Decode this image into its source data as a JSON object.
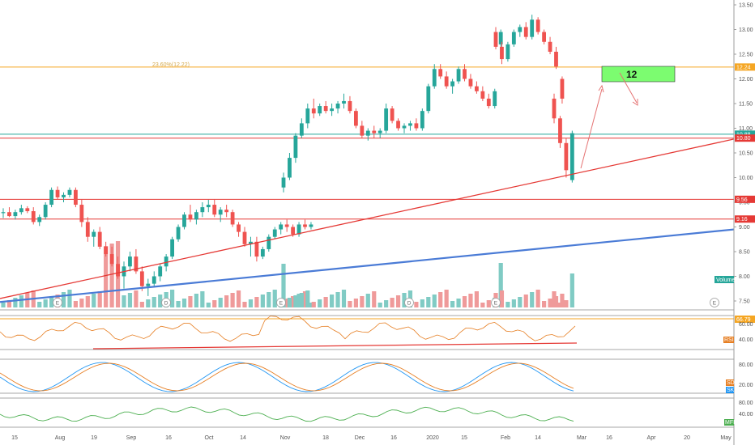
{
  "chart_data": {
    "type": "candlestick",
    "price_axis": {
      "ticks": [
        "13.50",
        "13.00",
        "12.50",
        "12.00",
        "11.50",
        "11.00",
        "10.50",
        "10.00",
        "9.50",
        "9.00",
        "8.50",
        "8.00",
        "7.50"
      ],
      "tick_values": [
        13.5,
        13.0,
        12.5,
        12.0,
        11.5,
        11.0,
        10.5,
        10.0,
        9.5,
        9.0,
        8.5,
        8.0,
        7.5
      ]
    },
    "time_axis": [
      "15",
      "Aug",
      "19",
      "Sep",
      "16",
      "Oct",
      "14",
      "Nov",
      "18",
      "Dec",
      "16",
      "2020",
      "15",
      "Feb",
      "14",
      "Mar",
      "16",
      "Apr",
      "20",
      "May"
    ],
    "horizontal_levels": [
      {
        "value": 12.24,
        "label": "12.24",
        "color": "#f5a623"
      },
      {
        "value": 10.88,
        "label": "10.88",
        "color": "#26a69a"
      },
      {
        "value": 10.8,
        "label": "10.80",
        "color": "#e53935"
      },
      {
        "value": 9.56,
        "label": "9.56",
        "color": "#e53935"
      },
      {
        "value": 9.16,
        "label": "9.16",
        "color": "#e53935"
      }
    ],
    "fib_label": "23.60%(12.22)",
    "target_box": {
      "label": "12",
      "color": "#7cfc70"
    },
    "candles": [
      [
        9.28,
        9.38,
        9.18,
        9.3
      ],
      [
        9.3,
        9.4,
        9.2,
        9.22
      ],
      [
        9.22,
        9.35,
        9.15,
        9.3
      ],
      [
        9.3,
        9.45,
        9.25,
        9.38
      ],
      [
        9.38,
        9.42,
        9.28,
        9.32
      ],
      [
        9.32,
        9.4,
        9.05,
        9.1
      ],
      [
        9.1,
        9.25,
        9.02,
        9.2
      ],
      [
        9.2,
        9.5,
        9.15,
        9.45
      ],
      [
        9.45,
        9.8,
        9.4,
        9.75
      ],
      [
        9.75,
        9.82,
        9.55,
        9.6
      ],
      [
        9.6,
        9.7,
        9.5,
        9.65
      ],
      [
        9.65,
        9.8,
        9.6,
        9.75
      ],
      [
        9.75,
        9.8,
        9.4,
        9.45
      ],
      [
        9.45,
        9.55,
        9.0,
        9.1
      ],
      [
        9.1,
        9.2,
        8.7,
        8.8
      ],
      [
        8.8,
        8.95,
        8.6,
        8.9
      ],
      [
        8.9,
        9.0,
        8.55,
        8.6
      ],
      [
        8.6,
        8.7,
        8.4,
        8.45
      ],
      [
        8.45,
        8.6,
        8.2,
        8.25
      ],
      [
        8.25,
        8.4,
        7.95,
        8.0
      ],
      [
        8.0,
        8.3,
        7.75,
        8.2
      ],
      [
        8.2,
        8.5,
        8.1,
        8.4
      ],
      [
        8.4,
        8.55,
        8.05,
        8.1
      ],
      [
        8.1,
        8.2,
        7.7,
        7.8
      ],
      [
        7.8,
        7.95,
        7.6,
        7.85
      ],
      [
        7.85,
        8.1,
        7.8,
        8.0
      ],
      [
        8.0,
        8.25,
        7.9,
        8.2
      ],
      [
        8.2,
        8.45,
        8.1,
        8.4
      ],
      [
        8.4,
        8.8,
        8.35,
        8.75
      ],
      [
        8.75,
        9.05,
        8.7,
        9.0
      ],
      [
        9.0,
        9.3,
        8.95,
        9.25
      ],
      [
        9.25,
        9.45,
        9.1,
        9.15
      ],
      [
        9.15,
        9.35,
        9.05,
        9.3
      ],
      [
        9.3,
        9.5,
        9.2,
        9.4
      ],
      [
        9.4,
        9.55,
        9.3,
        9.45
      ],
      [
        9.45,
        9.55,
        9.2,
        9.25
      ],
      [
        9.25,
        9.4,
        9.1,
        9.35
      ],
      [
        9.35,
        9.45,
        9.2,
        9.3
      ],
      [
        9.3,
        9.35,
        9.0,
        9.05
      ],
      [
        9.05,
        9.1,
        8.8,
        8.9
      ],
      [
        8.9,
        9.0,
        8.6,
        8.65
      ],
      [
        8.65,
        8.8,
        8.4,
        8.7
      ],
      [
        8.7,
        8.8,
        8.3,
        8.4
      ],
      [
        8.4,
        8.6,
        8.35,
        8.55
      ],
      [
        8.55,
        8.85,
        8.5,
        8.8
      ],
      [
        8.8,
        9.0,
        8.75,
        8.95
      ],
      [
        8.95,
        9.1,
        8.85,
        9.05
      ],
      [
        9.05,
        9.15,
        8.9,
        9.0
      ],
      [
        9.0,
        9.05,
        8.8,
        8.85
      ],
      [
        8.85,
        9.1,
        8.8,
        9.05
      ],
      [
        9.05,
        9.15,
        8.95,
        9.0
      ],
      [
        9.0,
        9.1,
        8.95,
        9.05
      ],
      [
        9.8,
        10.1,
        9.7,
        10.0
      ],
      [
        10.0,
        10.5,
        9.95,
        10.4
      ],
      [
        10.4,
        10.9,
        10.3,
        10.85
      ],
      [
        10.85,
        11.2,
        10.8,
        11.1
      ],
      [
        11.1,
        11.5,
        11.0,
        11.4
      ],
      [
        11.4,
        11.6,
        11.2,
        11.3
      ],
      [
        11.3,
        11.5,
        11.25,
        11.45
      ],
      [
        11.45,
        11.55,
        11.3,
        11.35
      ],
      [
        11.35,
        11.5,
        11.25,
        11.4
      ],
      [
        11.4,
        11.55,
        11.3,
        11.5
      ],
      [
        11.5,
        11.7,
        11.4,
        11.55
      ],
      [
        11.55,
        11.65,
        11.3,
        11.35
      ],
      [
        11.35,
        11.4,
        11.0,
        11.05
      ],
      [
        11.05,
        11.15,
        10.8,
        10.85
      ],
      [
        10.85,
        11.0,
        10.75,
        10.95
      ],
      [
        10.95,
        11.05,
        10.8,
        10.9
      ],
      [
        10.9,
        11.0,
        10.8,
        10.95
      ],
      [
        10.95,
        11.5,
        10.9,
        11.4
      ],
      [
        11.4,
        11.45,
        11.1,
        11.15
      ],
      [
        11.15,
        11.2,
        10.95,
        11.0
      ],
      [
        11.0,
        11.1,
        10.9,
        11.05
      ],
      [
        11.05,
        11.15,
        10.95,
        11.1
      ],
      [
        11.1,
        11.2,
        10.95,
        11.0
      ],
      [
        11.0,
        11.4,
        10.95,
        11.35
      ],
      [
        11.35,
        11.9,
        11.3,
        11.85
      ],
      [
        11.85,
        12.3,
        11.8,
        12.2
      ],
      [
        12.2,
        12.3,
        12.0,
        12.05
      ],
      [
        12.05,
        12.15,
        11.8,
        11.85
      ],
      [
        11.85,
        12.0,
        11.7,
        11.95
      ],
      [
        11.95,
        12.25,
        11.9,
        12.2
      ],
      [
        12.2,
        12.3,
        11.95,
        12.0
      ],
      [
        12.0,
        12.1,
        11.8,
        11.85
      ],
      [
        11.85,
        11.95,
        11.7,
        11.75
      ],
      [
        11.75,
        11.85,
        11.55,
        11.6
      ],
      [
        11.6,
        11.7,
        11.4,
        11.45
      ],
      [
        11.45,
        11.8,
        11.4,
        11.75
      ],
      [
        12.7,
        13.0,
        12.65,
        12.95
      ],
      [
        12.95,
        13.05,
        12.6,
        12.65
      ],
      [
        12.65,
        12.75,
        12.3,
        12.4
      ],
      [
        12.4,
        12.75,
        12.35,
        12.7
      ],
      [
        12.7,
        13.0,
        12.65,
        12.95
      ],
      [
        12.95,
        13.1,
        12.85,
        13.05
      ],
      [
        13.05,
        13.15,
        12.8,
        12.85
      ],
      [
        12.85,
        13.3,
        12.8,
        13.2
      ],
      [
        13.2,
        13.25,
        12.9,
        12.95
      ],
      [
        12.95,
        13.0,
        12.7,
        12.75
      ],
      [
        12.75,
        12.85,
        12.5,
        12.55
      ],
      [
        12.55,
        12.65,
        12.2,
        12.25
      ],
      [
        12.0,
        12.05,
        11.5,
        11.6
      ],
      [
        11.6,
        11.7,
        11.1,
        11.2
      ],
      [
        11.2,
        11.25,
        10.6,
        10.7
      ],
      [
        10.7,
        10.8,
        10.0,
        10.15
      ],
      [
        9.95,
        10.95,
        9.9,
        10.9
      ]
    ]
  }
}
